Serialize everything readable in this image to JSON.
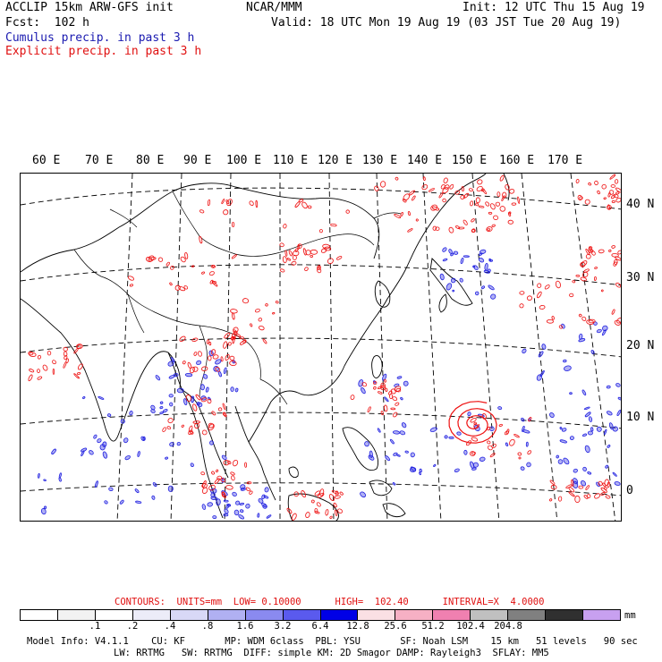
{
  "header": {
    "left_line1": "ACCLIP 15km ARW-GFS init",
    "left_line2": "Fcst:  102 h",
    "center": "NCAR/MMM",
    "right_line1": "Init: 12 UTC Thu 15 Aug 19",
    "right_line2": "Valid: 18 UTC Mon 19 Aug 19 (03 JST Tue 20 Aug 19)",
    "cumulus_label": "Cumulus precip. in past 3 h",
    "explicit_label": "Explicit precip. in past 3 h"
  },
  "map": {
    "longitude_labels": [
      "60 E",
      "70 E",
      "80 E",
      "90 E",
      "100 E",
      "110 E",
      "120 E",
      "130 E",
      "140 E",
      "150 E",
      "160 E",
      "170 E"
    ],
    "latitude_labels": [
      "40 N",
      "30 N",
      "20 N",
      "10 N",
      "0"
    ],
    "colors": {
      "cumulus": "#2020e0",
      "explicit": "#ee1010",
      "coast": "#000000",
      "grid": "#000000"
    }
  },
  "contours": {
    "text": "CONTOURS:  UNITS=mm  LOW= 0.10000      HIGH=  102.40      INTERVAL=X  4.0000"
  },
  "legend": {
    "colors": [
      "#ffffff",
      "#f2f2f2",
      "#ffffff",
      "#ececf8",
      "#d8d8f6",
      "#b0b0f2",
      "#8a8af0",
      "#5a5aee",
      "#0000e6",
      "#fae0e4",
      "#f6b0c4",
      "#f080b0",
      "#c0c0c0",
      "#808080",
      "#303030",
      "#c8a0f0"
    ],
    "labels": [
      ".1",
      ".2",
      ".4",
      ".8",
      "1.6",
      "3.2",
      "6.4",
      "12.8",
      "25.6",
      "51.2",
      "102.4",
      "204.8"
    ],
    "units": "mm"
  },
  "footer": {
    "line1": "Model Info: V4.1.1    CU: KF       MP: WDM 6class  PBL: YSU       SF: Noah LSM    15 km   51 levels   90 sec",
    "line2": "LW: RRTMG   SW: RRTMG  DIFF: simple KM: 2D Smagor DAMP: Rayleigh3  SFLAY: MM5"
  }
}
